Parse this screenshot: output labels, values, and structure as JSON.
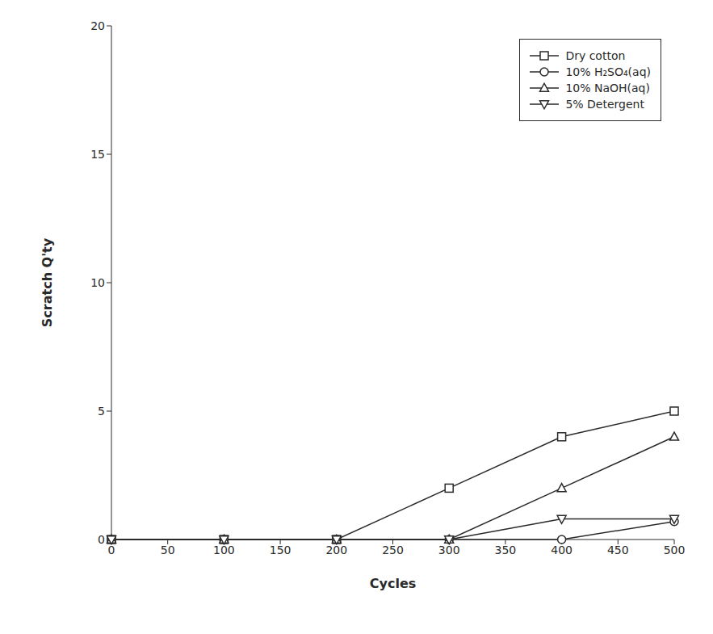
{
  "chart_data": {
    "type": "line",
    "x": [
      0,
      100,
      200,
      300,
      400,
      500
    ],
    "series": [
      {
        "name": "Dry cotton",
        "marker": "square",
        "values": [
          0,
          0,
          0,
          2,
          4,
          5
        ]
      },
      {
        "name": "10% H₂SO₄(aq)",
        "marker": "circle",
        "values": [
          0,
          0,
          0,
          0,
          0,
          0.7
        ]
      },
      {
        "name": "10% NaOH(aq)",
        "marker": "triangle-up",
        "values": [
          0,
          0,
          0,
          0,
          2,
          4
        ]
      },
      {
        "name": "5% Detergent",
        "marker": "triangle-down",
        "values": [
          0,
          0,
          0,
          0,
          0.8,
          0.8
        ]
      }
    ],
    "color": "#2a2a2a",
    "xlabel": "Cycles",
    "ylabel": "Scratch Q'ty",
    "xlim": [
      0,
      500
    ],
    "ylim": [
      0,
      20
    ],
    "xticks": [
      0,
      50,
      100,
      150,
      200,
      250,
      300,
      350,
      400,
      450,
      500
    ],
    "yticks": [
      0,
      5,
      10,
      15,
      20
    ],
    "legend": "upper right",
    "grid": false
  }
}
